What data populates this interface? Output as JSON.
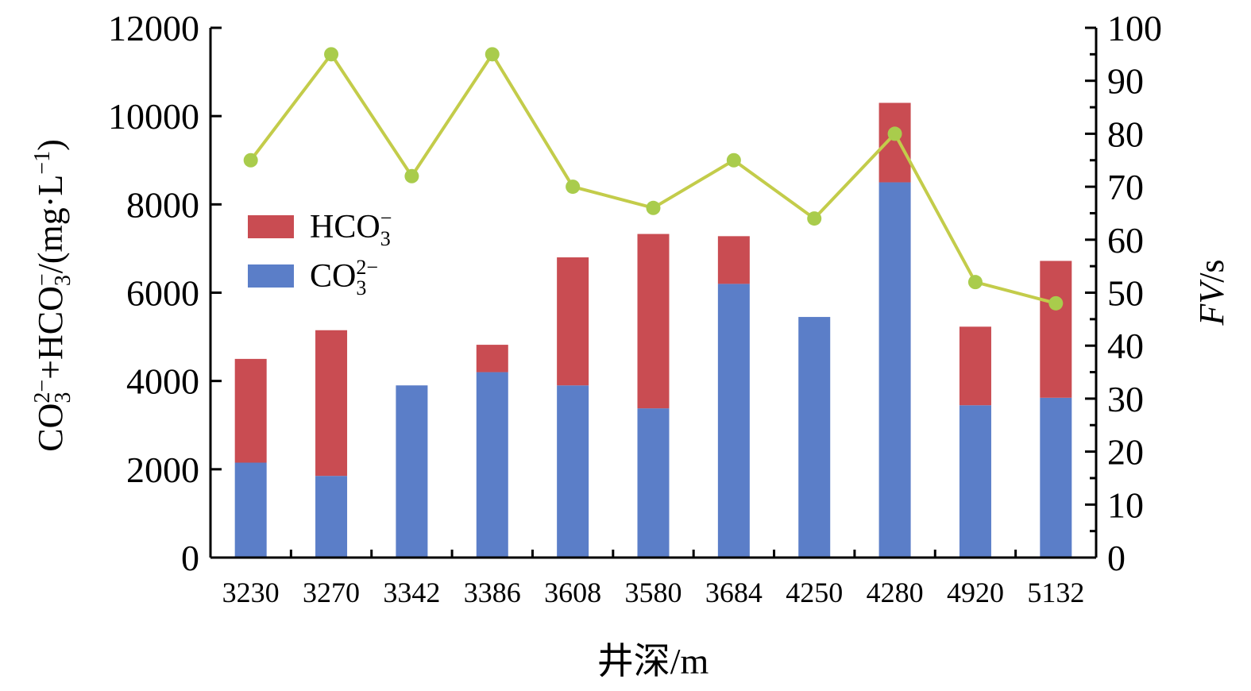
{
  "chart_data": {
    "type": "bar",
    "stacked": true,
    "x": {
      "label": "井深/m",
      "categories": [
        "3230",
        "3270",
        "3342",
        "3386",
        "3608",
        "3580",
        "3684",
        "4250",
        "4280",
        "4920",
        "5132"
      ]
    },
    "y_left": {
      "label_parts": [
        "CO",
        "3",
        "2−",
        "+HCO",
        "3",
        "−",
        "/(mg·L",
        "−1",
        ")"
      ],
      "range": [
        0,
        12000
      ],
      "ticks": [
        0,
        2000,
        4000,
        6000,
        8000,
        10000,
        12000
      ],
      "tick_labels": [
        "0",
        "2000",
        "4000",
        "6000",
        "8000",
        "10000",
        "12000"
      ]
    },
    "y_right": {
      "label_italic": "FV",
      "label_unit": "/s",
      "range": [
        0,
        100
      ],
      "ticks": [
        0,
        10,
        20,
        30,
        40,
        50,
        60,
        70,
        80,
        90,
        100
      ],
      "tick_labels": [
        "0",
        "10",
        "20",
        "30",
        "40",
        "50",
        "60",
        "70",
        "80",
        "90",
        "100"
      ]
    },
    "series": [
      {
        "name_parts": [
          "CO",
          "3",
          "2−"
        ],
        "type": "bar",
        "axis": "left",
        "color": "#5b7ec8",
        "values": [
          2150,
          1850,
          3900,
          4200,
          3900,
          3380,
          6200,
          5450,
          8500,
          3450,
          3620
        ]
      },
      {
        "name_parts": [
          "HCO",
          "3",
          "−"
        ],
        "type": "bar",
        "axis": "left",
        "color": "#c94c52",
        "values": [
          2350,
          3300,
          0,
          620,
          2900,
          3950,
          1080,
          0,
          1800,
          1780,
          3100
        ]
      },
      {
        "type": "line",
        "axis": "right",
        "color": "#c3cc4a",
        "marker_color": "#a9cc4c",
        "values": [
          75,
          95,
          72,
          95,
          70,
          66,
          75,
          64,
          80,
          52,
          48
        ]
      }
    ],
    "legend": {
      "position": "upper-left",
      "items": [
        {
          "label_parts": [
            "HCO",
            "3",
            "−"
          ],
          "color": "#c94c52"
        },
        {
          "label_parts": [
            "CO",
            "3",
            "2−"
          ],
          "color": "#5b7ec8"
        }
      ]
    },
    "grid": false
  }
}
